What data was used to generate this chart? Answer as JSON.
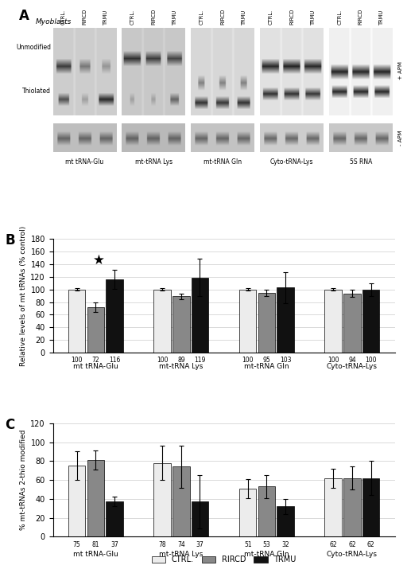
{
  "panel_B": {
    "groups": [
      "mt tRNA-Glu",
      "mt-tRNA Lys",
      "mt-tRNA Gln",
      "Cyto-tRNA-Lys"
    ],
    "ctrl_vals": [
      100,
      100,
      100,
      100
    ],
    "rircd_vals": [
      72,
      89,
      95,
      94
    ],
    "trmu_vals": [
      116,
      119,
      103,
      100
    ],
    "ctrl_err": [
      2,
      2,
      2,
      2
    ],
    "rircd_err": [
      8,
      5,
      5,
      6
    ],
    "trmu_err": [
      15,
      30,
      25,
      10
    ],
    "labels_ctrl": [
      100,
      100,
      100,
      100
    ],
    "labels_rircd": [
      72,
      89,
      95,
      94
    ],
    "labels_trmu": [
      116,
      119,
      103,
      100
    ],
    "ylabel": "Relative levels of mt tRNAs (% control)",
    "ylim": [
      0,
      180
    ],
    "yticks": [
      0,
      20,
      40,
      60,
      80,
      100,
      120,
      140,
      160,
      180
    ],
    "star_group": 0,
    "star_bar": 2
  },
  "panel_C": {
    "groups": [
      "mt tRNA-Glu",
      "mt-tRNA Lys",
      "mt-tRNA Gln",
      "Cyto-tRNA-Lys"
    ],
    "ctrl_vals": [
      75,
      78,
      51,
      62
    ],
    "rircd_vals": [
      81,
      74,
      53,
      62
    ],
    "trmu_vals": [
      37,
      37,
      32,
      62
    ],
    "ctrl_err": [
      15,
      18,
      10,
      10
    ],
    "rircd_err": [
      10,
      22,
      12,
      12
    ],
    "trmu_err": [
      5,
      28,
      8,
      18
    ],
    "labels_ctrl": [
      75,
      78,
      51,
      62
    ],
    "labels_rircd": [
      81,
      74,
      53,
      62
    ],
    "labels_trmu": [
      37,
      37,
      32,
      62
    ],
    "ylabel": "% mt-tRNAs 2-thio modified",
    "ylim": [
      0,
      120
    ],
    "yticks": [
      0,
      20,
      40,
      60,
      80,
      100,
      120
    ]
  },
  "colors": {
    "ctrl": "#ececec",
    "rircd": "#888888",
    "trmu": "#111111"
  },
  "bar_width": 0.22,
  "gel_labels": [
    "mt tRNA-Glu",
    "mt-tRNA Lys",
    "mt-tRNA Gln",
    "Cyto-tRNA-Lys",
    "5S RNA"
  ],
  "col_labels": [
    "CTRL.",
    "RIRCD",
    "TRMU"
  ]
}
